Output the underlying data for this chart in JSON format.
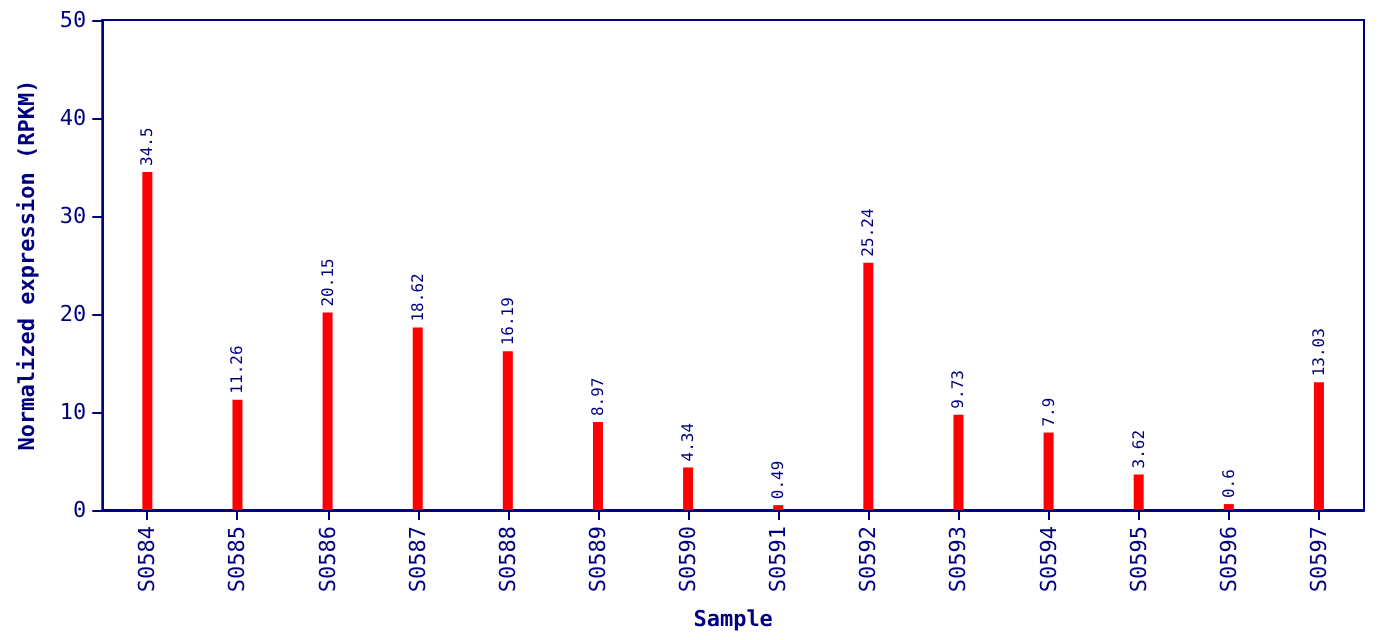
{
  "chart_data": {
    "type": "bar",
    "xlabel": "Sample",
    "ylabel": "Normalized expression (RPKM)",
    "categories": [
      "S0584",
      "S0585",
      "S0586",
      "S0587",
      "S0588",
      "S0589",
      "S0590",
      "S0591",
      "S0592",
      "S0593",
      "S0594",
      "S0595",
      "S0596",
      "S0597"
    ],
    "values": [
      34.5,
      11.26,
      20.15,
      18.62,
      16.19,
      8.97,
      4.34,
      0.49,
      25.24,
      9.73,
      7.9,
      3.62,
      0.6,
      13.03
    ],
    "color": "#ff0000",
    "ylim": [
      0,
      50
    ],
    "yticks": [
      0,
      10,
      20,
      30,
      40,
      50
    ],
    "grid": false,
    "data_labels": true
  }
}
